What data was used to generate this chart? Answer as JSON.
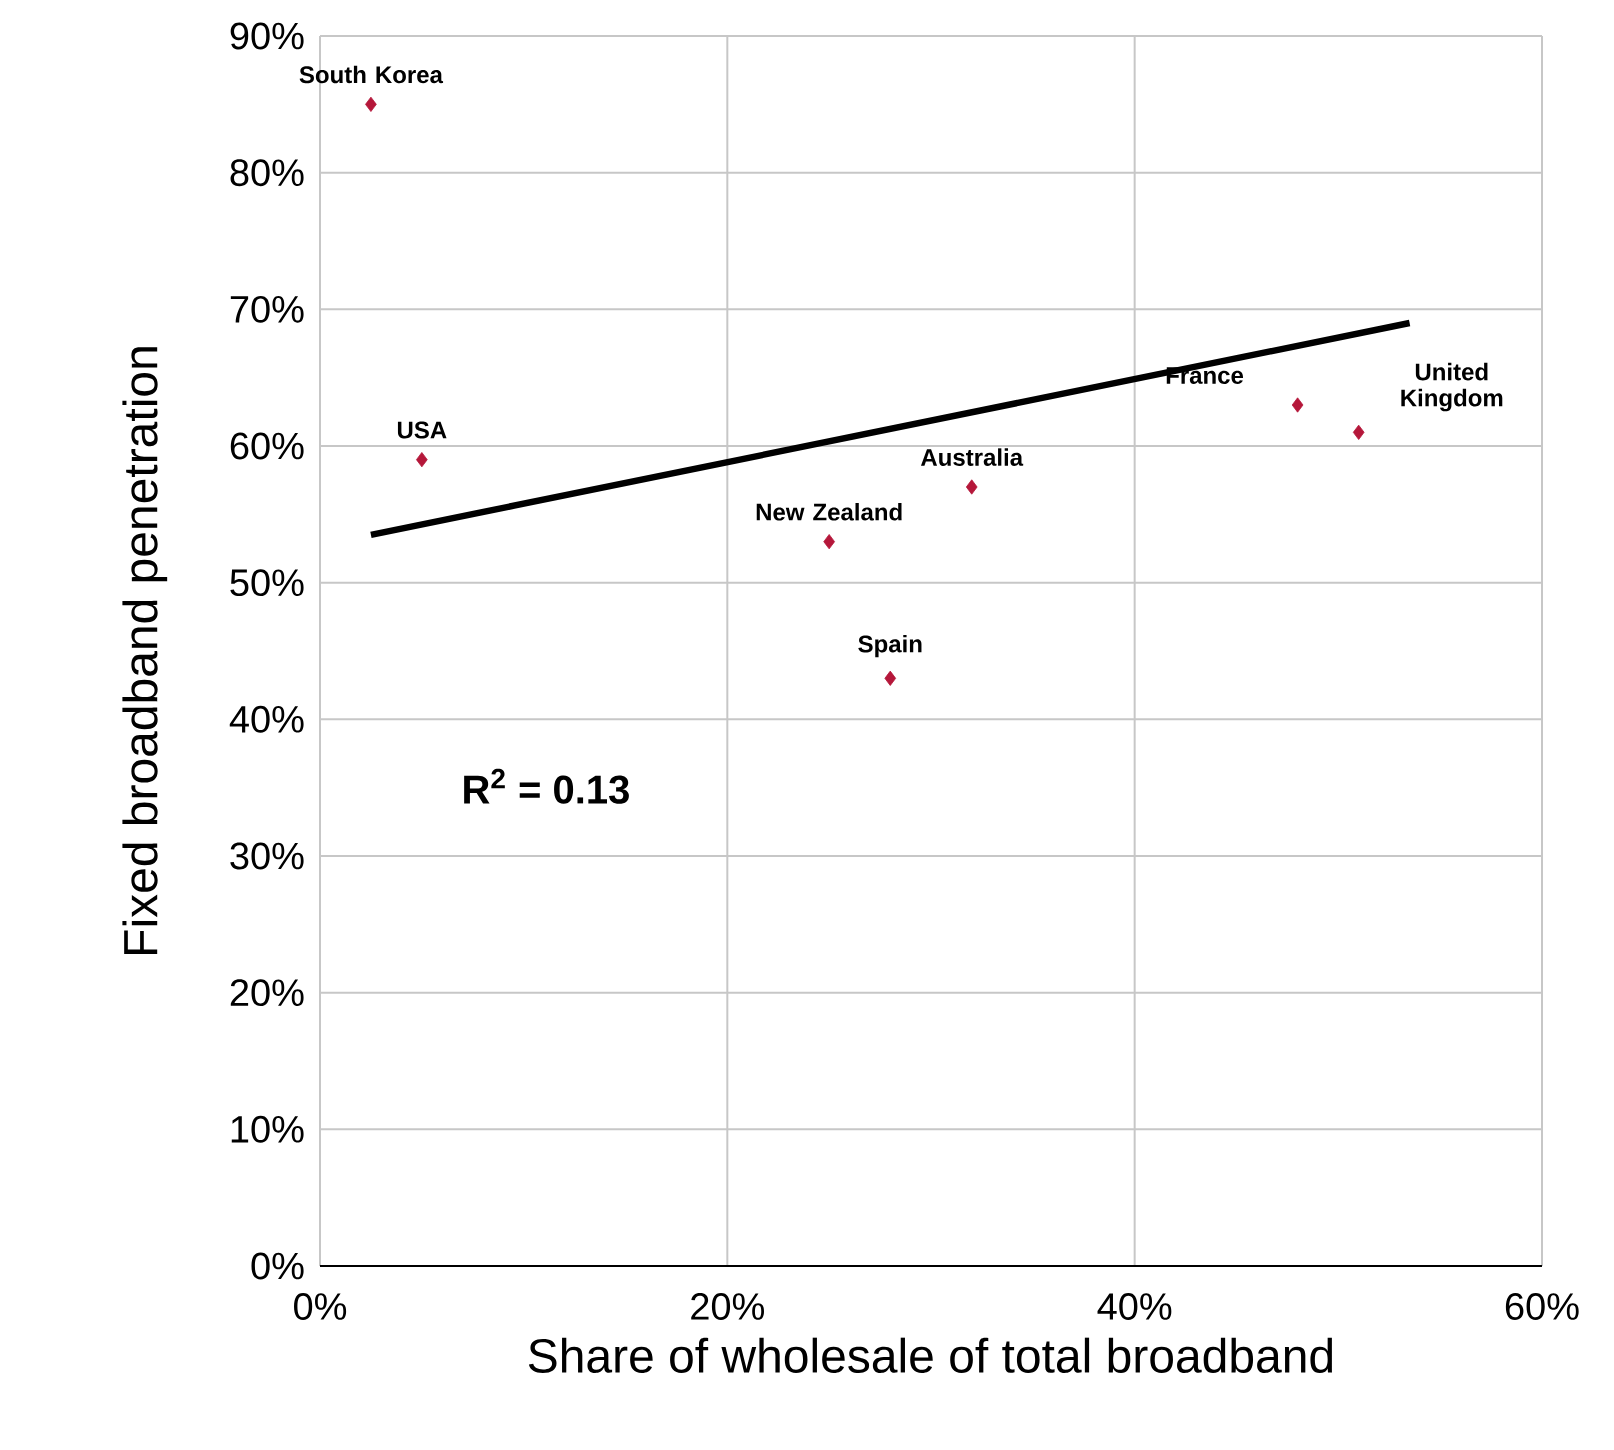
{
  "chart_data": {
    "type": "scatter",
    "xlabel": "Share of wholesale of total broadband",
    "ylabel": "Fixed broadband penetration",
    "series": [
      {
        "color": "#b5173a",
        "marker": "diamond",
        "x": [
          2.5,
          5,
          25,
          28,
          32,
          48,
          51
        ],
        "values": [
          85,
          59,
          53,
          43,
          57,
          63,
          61
        ]
      },
      {
        "type": "line",
        "color": "#000000",
        "x": [
          2.5,
          53.5
        ],
        "values": [
          53.5,
          69
        ]
      }
    ],
    "annotations": [
      {
        "text": "South Korea",
        "x": 2.5,
        "y": 85
      },
      {
        "text": "USA",
        "x": 5,
        "y": 59
      },
      {
        "text": "New Zealand",
        "x": 25,
        "y": 53
      },
      {
        "text": "Spain",
        "x": 28,
        "y": 43
      },
      {
        "text": "Australia",
        "x": 32,
        "y": 57
      },
      {
        "text": "France",
        "x": 48,
        "y": 63
      },
      {
        "text": "United Kingdom",
        "x": 51,
        "y": 61
      },
      "**R$^{2}$ = 0.13**"
    ],
    "xlim": [
      0,
      60
    ],
    "ylim": [
      0,
      90
    ],
    "xticks": [
      {
        "value": 0,
        "label": "0%"
      },
      {
        "value": 20,
        "label": "20%"
      },
      {
        "value": 40,
        "label": "40%"
      },
      {
        "value": 60,
        "label": "60%"
      }
    ],
    "yticks": [
      {
        "value": 0,
        "label": "0%"
      },
      {
        "value": 10,
        "label": "10%"
      },
      {
        "value": 20,
        "label": "20%"
      },
      {
        "value": 30,
        "label": "30%"
      },
      {
        "value": 40,
        "label": "40%"
      },
      {
        "value": 50,
        "label": "50%"
      },
      {
        "value": 60,
        "label": "60%"
      },
      {
        "value": 70,
        "label": "70%"
      },
      {
        "value": 80,
        "label": "80%"
      },
      {
        "value": 90,
        "label": "90%"
      }
    ],
    "grid": true
  }
}
